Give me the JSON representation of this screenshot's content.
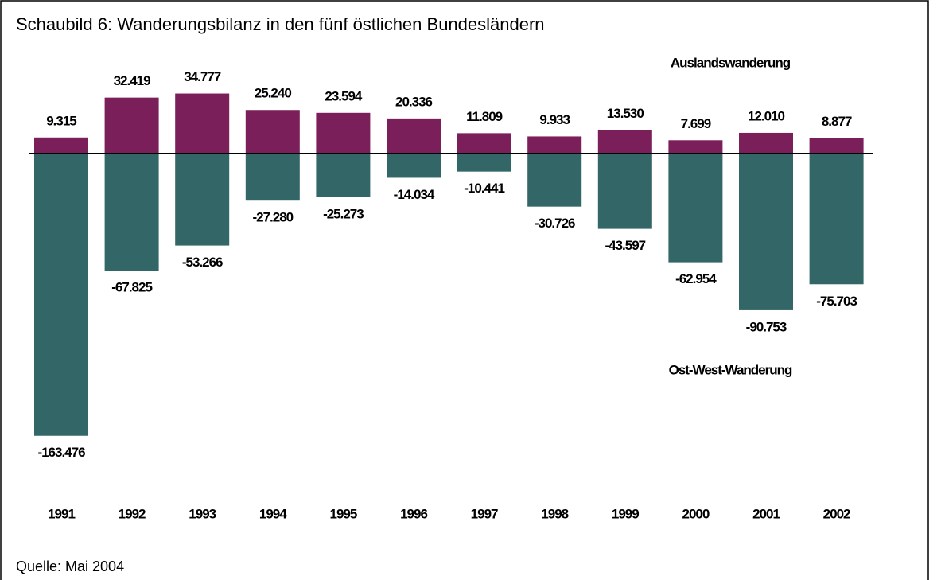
{
  "chart_data": {
    "type": "bar",
    "title": "Schaubild 6: Wanderungsbilanz in den fünf östlichen Bundesländern",
    "source": "Quelle: Mai 2004",
    "categories": [
      "1991",
      "1992",
      "1993",
      "1994",
      "1995",
      "1996",
      "1997",
      "1998",
      "1999",
      "2000",
      "2001",
      "2002"
    ],
    "series": [
      {
        "name": "Auslandswanderung",
        "color": "#7b1f5a",
        "values": [
          9315,
          32419,
          34777,
          25240,
          23594,
          20336,
          11809,
          9933,
          13530,
          7699,
          12010,
          8877
        ],
        "value_labels": [
          "9.315",
          "32.419",
          "34.777",
          "25.240",
          "23.594",
          "20.336",
          "11.809",
          "9.933",
          "13.530",
          "7.699",
          "12.010",
          "8.877"
        ]
      },
      {
        "name": "Ost-West-Wanderung",
        "color": "#336666",
        "values": [
          -163476,
          -67825,
          -53266,
          -27280,
          -25273,
          -14034,
          -10441,
          -30726,
          -43597,
          -62954,
          -90753,
          -75703
        ],
        "value_labels": [
          "-163.476",
          "-67.825",
          "-53.266",
          "-27.280",
          "-25.273",
          "-14.034",
          "-10.441",
          "-30.726",
          "-43.597",
          "-62.954",
          "-90.753",
          "-75.703"
        ]
      }
    ]
  }
}
